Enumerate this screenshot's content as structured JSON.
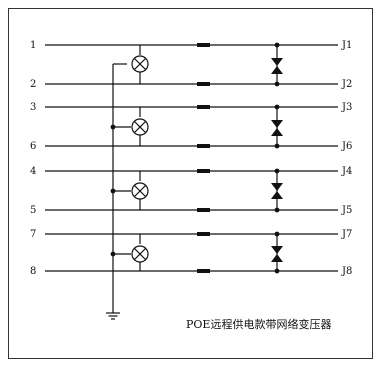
{
  "title": "POE远程供电款带网络变压器",
  "lines": [
    {
      "pin": "1",
      "jack": "J1"
    },
    {
      "pin": "2",
      "jack": "J2"
    },
    {
      "pin": "3",
      "jack": "J3"
    },
    {
      "pin": "6",
      "jack": "J6"
    },
    {
      "pin": "4",
      "jack": "J4"
    },
    {
      "pin": "5",
      "jack": "J5"
    },
    {
      "pin": "7",
      "jack": "J7"
    },
    {
      "pin": "8",
      "jack": "J8"
    }
  ],
  "colors": {
    "line": "#111111",
    "border": "#333333",
    "background": "#ffffff"
  }
}
